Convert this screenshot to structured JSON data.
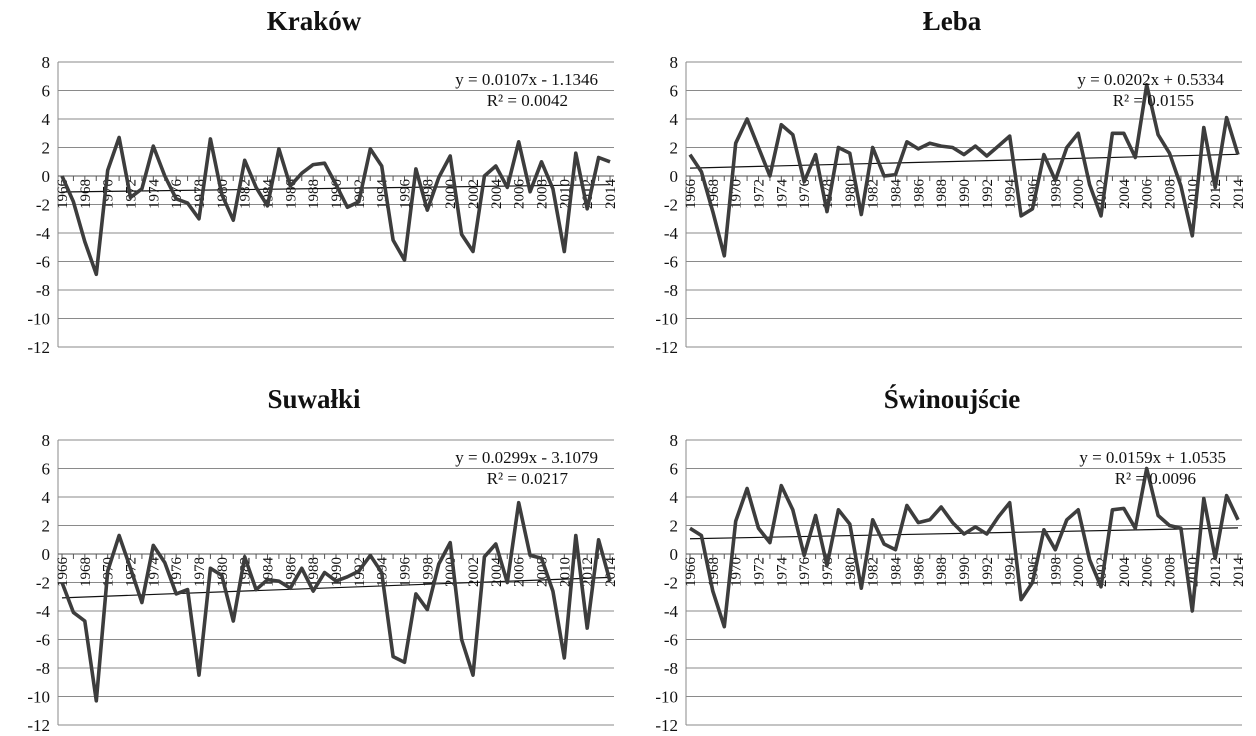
{
  "chart_data": [
    {
      "type": "line",
      "title": "Kraków",
      "ylim": [
        -12,
        8
      ],
      "yticks": [
        "8",
        "6",
        "4",
        "2",
        "0",
        "-2",
        "-4",
        "-6",
        "-8",
        "-10",
        "-12"
      ],
      "xlim": [
        1966,
        2014
      ],
      "xticks": [
        "1966",
        "1968",
        "1970",
        "1972",
        "1974",
        "1976",
        "1978",
        "1980",
        "1982",
        "1984",
        "1986",
        "1988",
        "1990",
        "1992",
        "1994",
        "1996",
        "1998",
        "2000",
        "2002",
        "2004",
        "2006",
        "2008",
        "2010",
        "2012",
        "2014"
      ],
      "grid": true,
      "series": [
        {
          "x": [
            1966,
            1967,
            1968,
            1969,
            1970,
            1971,
            1972,
            1973,
            1974,
            1975,
            1976,
            1977,
            1978,
            1979,
            1980,
            1981,
            1982,
            1983,
            1984,
            1985,
            1986,
            1987,
            1988,
            1989,
            1990,
            1991,
            1992,
            1993,
            1994,
            1995,
            1996,
            1997,
            1998,
            1999,
            2000,
            2001,
            2002,
            2003,
            2004,
            2005,
            2006,
            2007,
            2008,
            2009,
            2010,
            2011,
            2012,
            2013,
            2014
          ],
          "values": [
            0.0,
            -1.8,
            -4.6,
            -6.9,
            0.4,
            2.7,
            -1.5,
            -0.9,
            2.1,
            0.0,
            -1.6,
            -1.9,
            -3.0,
            2.6,
            -1.3,
            -3.1,
            1.1,
            -0.8,
            -2.1,
            1.9,
            -0.7,
            0.2,
            0.8,
            0.9,
            -0.6,
            -2.2,
            -1.8,
            1.9,
            0.7,
            -4.5,
            -5.9,
            0.5,
            -2.4,
            -0.1,
            1.4,
            -4.1,
            -5.3,
            0.0,
            0.7,
            -0.8,
            2.4,
            -1.1,
            1.0,
            -0.9,
            -5.3,
            1.6,
            -2.3,
            1.3,
            1.0
          ]
        }
      ],
      "trendline": {
        "slope": 0.0107,
        "intercept": -1.1346
      },
      "annotation": {
        "equation": "y = 0.0107x - 1.1346",
        "r2": "R² = 0.0042"
      }
    },
    {
      "type": "line",
      "title": "Łeba",
      "ylim": [
        -12,
        8
      ],
      "yticks": [
        "8",
        "6",
        "4",
        "2",
        "0",
        "-2",
        "-4",
        "-6",
        "-8",
        "-10",
        "-12"
      ],
      "xlim": [
        1966,
        2014
      ],
      "xticks": [
        "1966",
        "1968",
        "1970",
        "1972",
        "1974",
        "1976",
        "1978",
        "1980",
        "1982",
        "1984",
        "1986",
        "1988",
        "1990",
        "1992",
        "1994",
        "1996",
        "1998",
        "2000",
        "2002",
        "2004",
        "2006",
        "2008",
        "2010",
        "2012",
        "2014"
      ],
      "grid": true,
      "series": [
        {
          "x": [
            1966,
            1967,
            1968,
            1969,
            1970,
            1971,
            1972,
            1973,
            1974,
            1975,
            1976,
            1977,
            1978,
            1979,
            1980,
            1981,
            1982,
            1983,
            1984,
            1985,
            1986,
            1987,
            1988,
            1989,
            1990,
            1991,
            1992,
            1993,
            1994,
            1995,
            1996,
            1997,
            1998,
            1999,
            2000,
            2001,
            2002,
            2003,
            2004,
            2005,
            2006,
            2007,
            2008,
            2009,
            2010,
            2011,
            2012,
            2013,
            2014
          ],
          "values": [
            1.5,
            0.3,
            -2.5,
            -5.6,
            2.3,
            4.0,
            2.0,
            0.0,
            3.6,
            2.9,
            -0.4,
            1.5,
            -2.5,
            2.0,
            1.6,
            -2.7,
            2.0,
            0.0,
            0.1,
            2.4,
            1.9,
            2.3,
            2.1,
            2.0,
            1.5,
            2.1,
            1.4,
            2.1,
            2.8,
            -2.8,
            -2.3,
            1.5,
            -0.3,
            2.0,
            3.0,
            -0.6,
            -2.8,
            3.0,
            3.0,
            1.3,
            6.4,
            2.9,
            1.6,
            -0.7,
            -4.2,
            3.4,
            -0.8,
            4.1,
            1.5
          ]
        }
      ],
      "trendline": {
        "slope": 0.0202,
        "intercept": 0.5334
      },
      "annotation": {
        "equation": "y = 0.0202x + 0.5334",
        "r2": "R² = 0.0155"
      }
    },
    {
      "type": "line",
      "title": "Suwałki",
      "ylim": [
        -12,
        8
      ],
      "yticks": [
        "8",
        "6",
        "4",
        "2",
        "0",
        "-2",
        "-4",
        "-6",
        "-8",
        "-10",
        "-12"
      ],
      "xlim": [
        1966,
        2014
      ],
      "xticks": [
        "1966",
        "1968",
        "1970",
        "1972",
        "1974",
        "1976",
        "1978",
        "1980",
        "1982",
        "1984",
        "1986",
        "1988",
        "1990",
        "1992",
        "1994",
        "1996",
        "1998",
        "2000",
        "2002",
        "2004",
        "2006",
        "2008",
        "2010",
        "2012",
        "2014"
      ],
      "grid": true,
      "series": [
        {
          "x": [
            1966,
            1967,
            1968,
            1969,
            1970,
            1971,
            1972,
            1973,
            1974,
            1975,
            1976,
            1977,
            1978,
            1979,
            1980,
            1981,
            1982,
            1983,
            1984,
            1985,
            1986,
            1987,
            1988,
            1989,
            1990,
            1991,
            1992,
            1993,
            1994,
            1995,
            1996,
            1997,
            1998,
            1999,
            2000,
            2001,
            2002,
            2003,
            2004,
            2005,
            2006,
            2007,
            2008,
            2009,
            2010,
            2011,
            2012,
            2013,
            2014
          ],
          "values": [
            -2.0,
            -4.1,
            -4.7,
            -10.3,
            -1.2,
            1.3,
            -1.0,
            -3.4,
            0.6,
            -0.6,
            -2.8,
            -2.5,
            -8.5,
            -1.0,
            -1.5,
            -4.7,
            -0.2,
            -2.5,
            -1.8,
            -1.9,
            -2.4,
            -1.0,
            -2.6,
            -1.3,
            -1.9,
            -1.6,
            -1.2,
            -0.1,
            -1.3,
            -7.2,
            -7.6,
            -2.8,
            -3.9,
            -0.7,
            0.8,
            -6.0,
            -8.5,
            -0.2,
            0.7,
            -2.0,
            3.6,
            -0.1,
            -0.3,
            -2.6,
            -7.3,
            1.3,
            -5.2,
            1.0,
            -1.9
          ]
        }
      ],
      "trendline": {
        "slope": 0.0299,
        "intercept": -3.1079
      },
      "annotation": {
        "equation": "y = 0.0299x - 3.1079",
        "r2": "R² = 0.0217"
      }
    },
    {
      "type": "line",
      "title": "Świnoujście",
      "ylim": [
        -12,
        8
      ],
      "yticks": [
        "8",
        "6",
        "4",
        "2",
        "0",
        "-2",
        "-4",
        "-6",
        "-8",
        "-10",
        "-12"
      ],
      "xlim": [
        1966,
        2014
      ],
      "xticks": [
        "1966",
        "1968",
        "1970",
        "1972",
        "1974",
        "1976",
        "1978",
        "1980",
        "1982",
        "1984",
        "1986",
        "1988",
        "1990",
        "1992",
        "1994",
        "1996",
        "1998",
        "2000",
        "2002",
        "2004",
        "2006",
        "2008",
        "2010",
        "2012",
        "2014"
      ],
      "grid": true,
      "series": [
        {
          "x": [
            1966,
            1967,
            1968,
            1969,
            1970,
            1971,
            1972,
            1973,
            1974,
            1975,
            1976,
            1977,
            1978,
            1979,
            1980,
            1981,
            1982,
            1983,
            1984,
            1985,
            1986,
            1987,
            1988,
            1989,
            1990,
            1991,
            1992,
            1993,
            1994,
            1995,
            1996,
            1997,
            1998,
            1999,
            2000,
            2001,
            2002,
            2003,
            2004,
            2005,
            2006,
            2007,
            2008,
            2009,
            2010,
            2011,
            2012,
            2013,
            2014
          ],
          "values": [
            1.8,
            1.3,
            -2.6,
            -5.1,
            2.3,
            4.6,
            1.8,
            0.8,
            4.8,
            3.1,
            -0.1,
            2.7,
            -0.8,
            3.1,
            2.1,
            -2.4,
            2.4,
            0.7,
            0.3,
            3.4,
            2.2,
            2.4,
            3.3,
            2.2,
            1.4,
            1.9,
            1.4,
            2.6,
            3.6,
            -3.2,
            -2.0,
            1.7,
            0.3,
            2.4,
            3.1,
            -0.4,
            -2.3,
            3.1,
            3.2,
            1.8,
            6.0,
            2.7,
            2.0,
            1.8,
            -4.0,
            3.9,
            -0.3,
            4.1,
            2.4
          ]
        }
      ],
      "trendline": {
        "slope": 0.0159,
        "intercept": 1.0535
      },
      "annotation": {
        "equation": "y = 0.0159x + 1.0535",
        "r2": "R² = 0.0096"
      }
    }
  ]
}
